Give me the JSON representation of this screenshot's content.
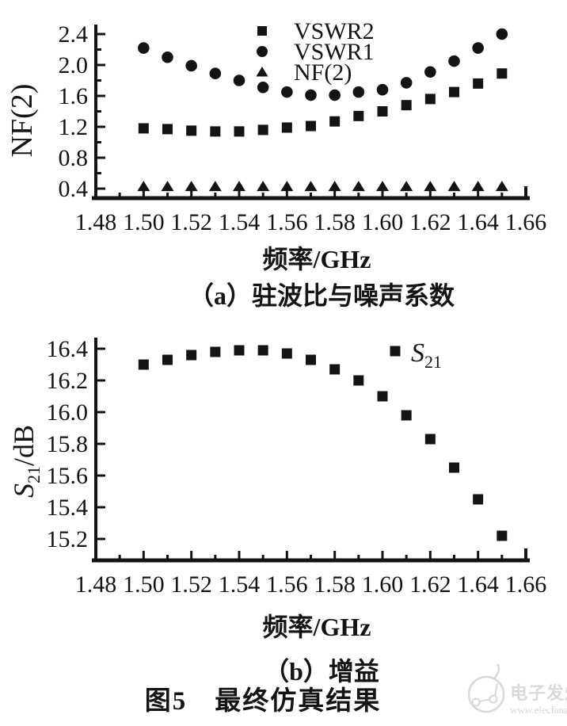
{
  "figure": {
    "caption": "图5　最终仿真结果"
  },
  "watermark": {
    "brand": "电子发烧友",
    "url": "www.elecfans.com"
  },
  "chart_data": [
    {
      "type": "scatter",
      "panel_label": "（a）驻波比与噪声系数",
      "xlabel": "频率/GHz",
      "ylabel": "NF(2)",
      "xlim": [
        1.48,
        1.66
      ],
      "ylim": [
        0.25,
        2.45
      ],
      "grid": false,
      "legend_position": "top-center-inside",
      "xticks": [
        1.48,
        1.5,
        1.52,
        1.54,
        1.56,
        1.58,
        1.6,
        1.62,
        1.64,
        1.66
      ],
      "yticks": [
        2.4,
        2.0,
        1.6,
        1.2,
        0.8,
        0.4
      ],
      "x": [
        1.5,
        1.51,
        1.52,
        1.53,
        1.54,
        1.55,
        1.56,
        1.57,
        1.58,
        1.59,
        1.6,
        1.61,
        1.62,
        1.63,
        1.64,
        1.65
      ],
      "series": [
        {
          "name": "VSWR2",
          "marker": "square",
          "values": [
            1.18,
            1.17,
            1.15,
            1.14,
            1.14,
            1.16,
            1.19,
            1.21,
            1.27,
            1.34,
            1.4,
            1.48,
            1.56,
            1.65,
            1.76,
            1.89
          ]
        },
        {
          "name": "VSWR1",
          "marker": "circle",
          "values": [
            2.22,
            2.1,
            1.99,
            1.89,
            1.8,
            1.71,
            1.65,
            1.61,
            1.61,
            1.65,
            1.68,
            1.77,
            1.91,
            2.05,
            2.22,
            2.4
          ]
        },
        {
          "name": "NF(2)",
          "marker": "triangle",
          "values": [
            0.43,
            0.43,
            0.43,
            0.43,
            0.43,
            0.43,
            0.43,
            0.43,
            0.43,
            0.43,
            0.43,
            0.43,
            0.43,
            0.43,
            0.43,
            0.43
          ]
        }
      ]
    },
    {
      "type": "scatter",
      "panel_label": "（b）增益",
      "xlabel": "频率/GHz",
      "ylabel_base": "S",
      "ylabel_sub": "21",
      "ylabel_unit": "/dB",
      "legend_base": "S",
      "legend_sub": "21",
      "xlim": [
        1.48,
        1.66
      ],
      "ylim": [
        15.1,
        16.45
      ],
      "grid": false,
      "legend_position": "top-right-inside",
      "xticks": [
        1.48,
        1.5,
        1.52,
        1.54,
        1.56,
        1.58,
        1.6,
        1.62,
        1.64,
        1.66
      ],
      "yticks": [
        16.4,
        16.2,
        16.0,
        15.8,
        15.6,
        15.4,
        15.2
      ],
      "x": [
        1.5,
        1.51,
        1.52,
        1.53,
        1.54,
        1.55,
        1.56,
        1.57,
        1.58,
        1.59,
        1.6,
        1.61,
        1.62,
        1.63,
        1.64,
        1.65
      ],
      "series": [
        {
          "name": "S21",
          "marker": "square",
          "values": [
            16.3,
            16.33,
            16.36,
            16.38,
            16.39,
            16.39,
            16.37,
            16.33,
            16.27,
            16.2,
            16.1,
            15.98,
            15.83,
            15.65,
            15.45,
            15.22
          ]
        }
      ]
    }
  ]
}
